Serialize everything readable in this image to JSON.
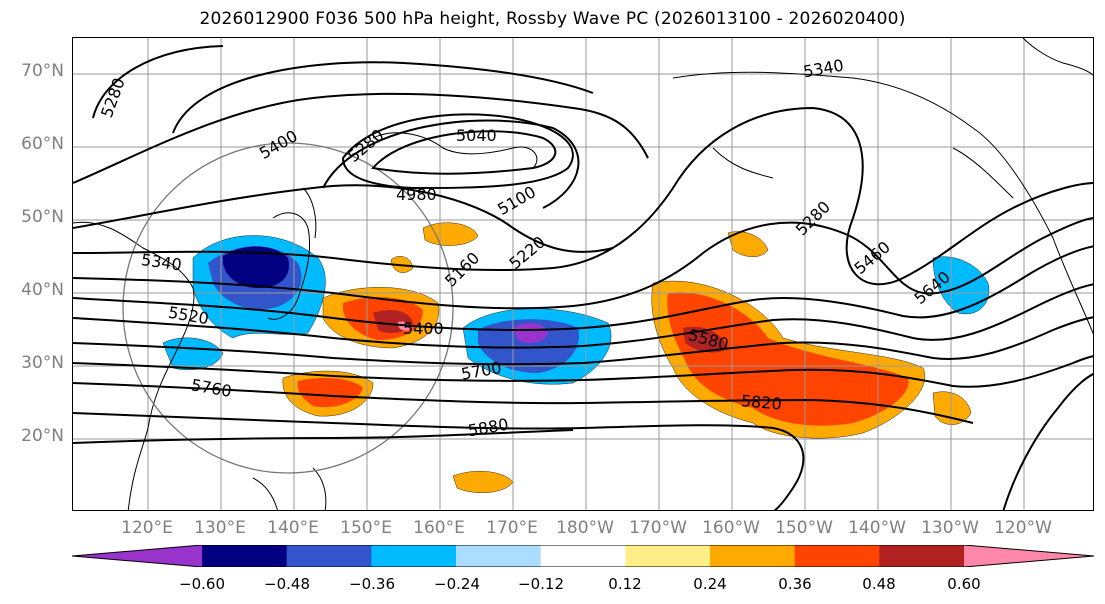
{
  "title": "2026012900 F036 500 hPa height, Rossby Wave PC (2026013100 - 2026020400)",
  "lat_labels": [
    "70°N",
    "60°N",
    "50°N",
    "40°N",
    "30°N",
    "20°N"
  ],
  "lon_labels": [
    "120°E",
    "130°E",
    "140°E",
    "150°E",
    "160°E",
    "170°E",
    "180°W",
    "170°W",
    "160°W",
    "150°W",
    "140°W",
    "130°W",
    "120°W"
  ],
  "contour_labels": [
    "5280",
    "5400",
    "5280",
    "5040",
    "4980",
    "5100",
    "5220",
    "5160",
    "5340",
    "5340",
    "5520",
    "5400",
    "5700",
    "5760",
    "5880",
    "5580",
    "5820",
    "5280",
    "5460",
    "5640"
  ],
  "colorbar": {
    "labels": [
      "−0.60",
      "−0.48",
      "−0.36",
      "−0.24",
      "−0.12",
      "0.12",
      "0.24",
      "0.36",
      "0.48",
      "0.60"
    ],
    "colors": [
      "#9933cc",
      "#000080",
      "#3355cc",
      "#00bbff",
      "#aaddff",
      "#ffffff",
      "#ffee88",
      "#ffaa00",
      "#ff4400",
      "#b22222",
      "#ff88aa"
    ]
  }
}
